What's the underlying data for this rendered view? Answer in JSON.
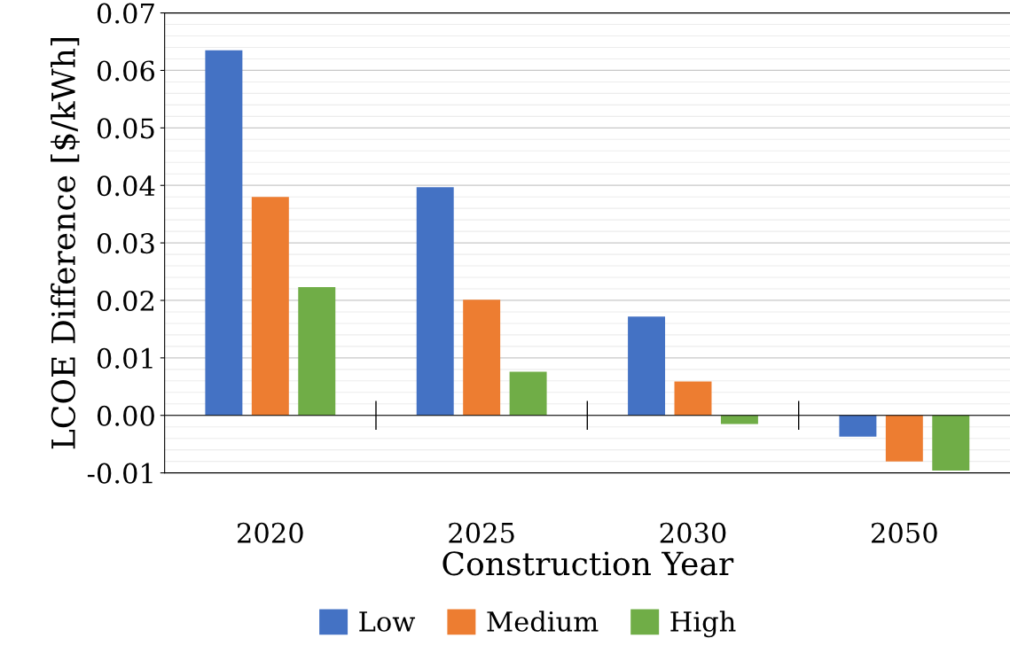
{
  "chart_data": {
    "type": "bar",
    "xlabel": "Construction Year",
    "ylabel": "LCOE Difference [$/kWh]",
    "categories": [
      "2020",
      "2025",
      "2030",
      "2050"
    ],
    "series": [
      {
        "name": "Low",
        "color": "#4472c4",
        "values": [
          0.0635,
          0.0397,
          0.0172,
          -0.0037
        ]
      },
      {
        "name": "Medium",
        "color": "#ed7d31",
        "values": [
          0.038,
          0.0201,
          0.0059,
          -0.008
        ]
      },
      {
        "name": "High",
        "color": "#70ad47",
        "values": [
          0.0223,
          0.0076,
          -0.0015,
          -0.0096
        ]
      }
    ],
    "ylim": [
      -0.01,
      0.07
    ],
    "yticks": [
      {
        "value": -0.01,
        "label": "-0.01"
      },
      {
        "value": 0,
        "label": "0.00"
      },
      {
        "value": 0.01,
        "label": "0.01"
      },
      {
        "value": 0.02,
        "label": "0.02"
      },
      {
        "value": 0.03,
        "label": "0.03"
      },
      {
        "value": 0.04,
        "label": "0.04"
      },
      {
        "value": 0.05,
        "label": "0.05"
      },
      {
        "value": 0.06,
        "label": "0.06"
      },
      {
        "value": 0.07,
        "label": "0.07"
      }
    ],
    "grid": "y",
    "legend": "bottom"
  }
}
